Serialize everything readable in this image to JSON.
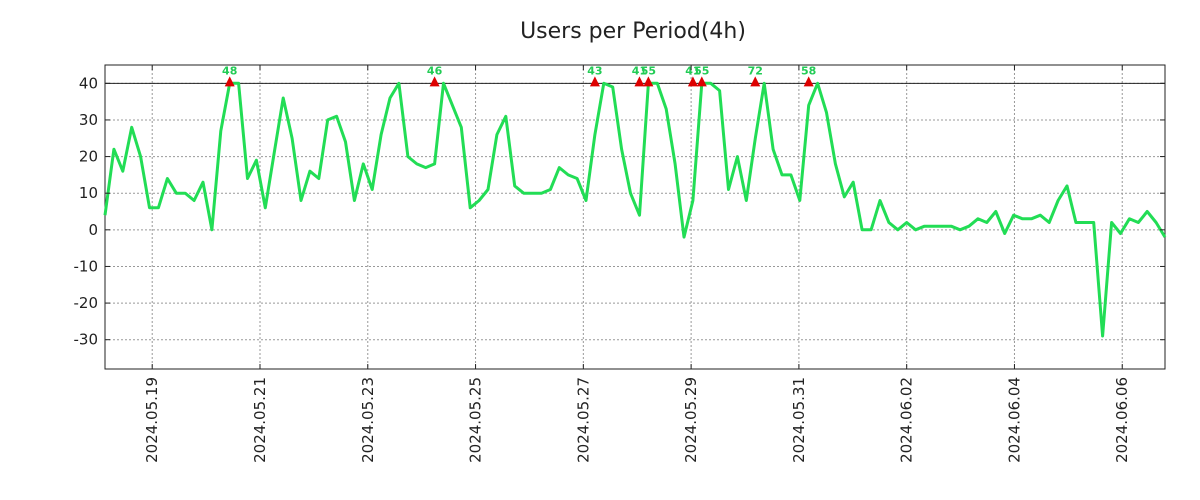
{
  "chart_data": {
    "type": "line",
    "title": "Users per Period(4h)",
    "xlabel": "",
    "ylabel": "",
    "ylim": [
      -38,
      45
    ],
    "y_ticks": [
      40,
      30,
      20,
      10,
      0,
      -10,
      -20,
      -30
    ],
    "y_tick_labels": [
      "40",
      "30",
      "20",
      "10",
      "0",
      "-10",
      "-20",
      "-30"
    ],
    "x_ticks": [
      {
        "t": 6.3,
        "label": "2024.05.19"
      },
      {
        "t": 18.4,
        "label": "2024.05.21"
      },
      {
        "t": 30.5,
        "label": "2024.05.23"
      },
      {
        "t": 42.6,
        "label": "2024.05.25"
      },
      {
        "t": 54.7,
        "label": "2024.05.27"
      },
      {
        "t": 66.8,
        "label": "2024.05.29"
      },
      {
        "t": 78.9,
        "label": "2024.05.31"
      },
      {
        "t": 91.0,
        "label": "2024.06.02"
      },
      {
        "t": 103.1,
        "label": "2024.06.04"
      },
      {
        "t": 115.2,
        "label": "2024.06.06"
      }
    ],
    "x_range": [
      1,
      120
    ],
    "grid": true,
    "cap_line": 40,
    "series": [
      {
        "name": "users",
        "color": "#22dd55",
        "values": [
          4,
          22,
          16,
          28,
          20,
          6,
          6,
          14,
          10,
          10,
          8,
          13,
          0,
          27,
          40,
          40,
          14,
          19,
          6,
          21,
          36,
          25,
          8,
          16,
          14,
          30,
          31,
          24,
          8,
          18,
          11,
          26,
          36,
          40,
          20,
          18,
          17,
          18,
          40,
          34,
          28,
          6,
          8,
          11,
          26,
          31,
          12,
          10,
          10,
          10,
          11,
          17,
          15,
          14,
          8,
          26,
          40,
          39,
          22,
          10,
          4,
          40,
          40,
          33,
          18,
          -2,
          8,
          40,
          40,
          38,
          11,
          20,
          8,
          25,
          40,
          22,
          15,
          15,
          8,
          34,
          40,
          32,
          18,
          9,
          13,
          0,
          0,
          8,
          2,
          0,
          2,
          0,
          1,
          1,
          1,
          1,
          0,
          1,
          3,
          2,
          5,
          -1,
          4,
          3,
          3,
          4,
          2,
          8,
          12,
          2,
          2,
          2,
          -29,
          2,
          -1,
          3,
          2,
          5,
          2,
          -2
        ]
      }
    ],
    "peaks": [
      {
        "t": 15,
        "label": "48"
      },
      {
        "t": 38,
        "label": "46"
      },
      {
        "t": 56,
        "label": "43"
      },
      {
        "t": 61,
        "label": "41"
      },
      {
        "t": 62,
        "label": "55"
      },
      {
        "t": 67,
        "label": "41"
      },
      {
        "t": 68,
        "label": "55"
      },
      {
        "t": 74,
        "label": "72"
      },
      {
        "t": 80,
        "label": "58"
      }
    ],
    "peak_marker_color": "#dd0000",
    "peak_label_color": "#22cc55"
  }
}
